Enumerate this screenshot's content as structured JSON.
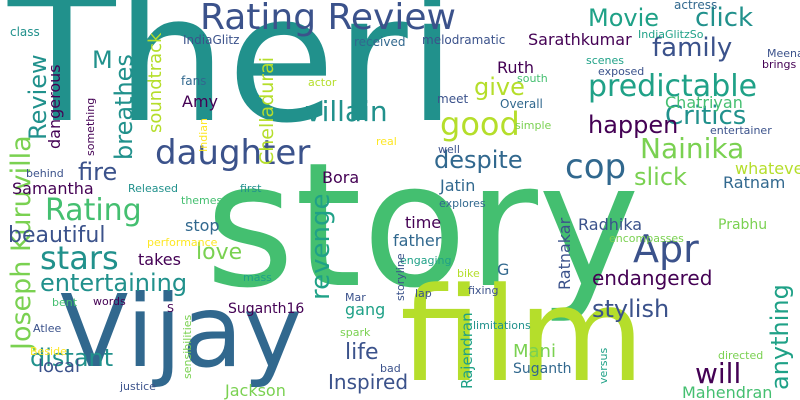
{
  "palette": {
    "background": "#ffffff",
    "dark_purple": "#440154",
    "navy": "#3b528b",
    "blue": "#31688e",
    "teal": "#21918c",
    "green_teal": "#1fa187",
    "green": "#44bf70",
    "light_green": "#7ad151",
    "lime": "#b5de2b",
    "yellow": "#fde725"
  },
  "words": [
    {
      "text": "Theri",
      "color": "teal"
    },
    {
      "text": "story",
      "color": "green"
    },
    {
      "text": "film",
      "color": "lime"
    },
    {
      "text": "Vijay",
      "color": "blue"
    },
    {
      "text": "Rating Review",
      "color": "navy"
    },
    {
      "text": "daughter",
      "color": "navy"
    },
    {
      "text": "Apr",
      "color": "navy"
    },
    {
      "text": "cop",
      "color": "blue"
    },
    {
      "text": "predictable",
      "color": "green_teal"
    },
    {
      "text": "Nainika",
      "color": "light_green"
    },
    {
      "text": "Rating",
      "color": "green"
    },
    {
      "text": "stars",
      "color": "teal"
    },
    {
      "text": "revenge",
      "color": "green_teal"
    },
    {
      "text": "Joseph Kuruvilla",
      "color": "light_green"
    },
    {
      "text": "good",
      "color": "lime"
    },
    {
      "text": "villain",
      "color": "teal"
    },
    {
      "text": "family",
      "color": "navy"
    },
    {
      "text": "Critics",
      "color": "teal"
    },
    {
      "text": "click",
      "color": "teal"
    },
    {
      "text": "Movie",
      "color": "green_teal"
    },
    {
      "text": "happen",
      "color": "dark_purple"
    },
    {
      "text": "slick",
      "color": "light_green"
    },
    {
      "text": "despite",
      "color": "blue"
    },
    {
      "text": "Review",
      "color": "teal"
    },
    {
      "text": "breathes",
      "color": "teal"
    },
    {
      "text": "M",
      "color": "teal"
    },
    {
      "text": "give",
      "color": "lime"
    },
    {
      "text": "fire",
      "color": "navy"
    },
    {
      "text": "love",
      "color": "light_green"
    },
    {
      "text": "entertaining",
      "color": "teal"
    },
    {
      "text": "beautiful",
      "color": "navy"
    },
    {
      "text": "stylish",
      "color": "navy"
    },
    {
      "text": "will",
      "color": "dark_purple"
    },
    {
      "text": "anything",
      "color": "green_teal"
    },
    {
      "text": "endangered",
      "color": "dark_purple"
    },
    {
      "text": "distant",
      "color": "teal"
    },
    {
      "text": "life",
      "color": "navy"
    },
    {
      "text": "Inspired",
      "color": "navy"
    },
    {
      "text": "local",
      "color": "navy"
    },
    {
      "text": "Mani",
      "color": "light_green"
    },
    {
      "text": "Ratnam",
      "color": "blue"
    },
    {
      "text": "whatever",
      "color": "lime"
    },
    {
      "text": "Chelladurai",
      "color": "lime"
    },
    {
      "text": "Amy",
      "color": "dark_purple"
    },
    {
      "text": "Jatin",
      "color": "blue"
    },
    {
      "text": "Bora",
      "color": "dark_purple"
    },
    {
      "text": "Ratnakar",
      "color": "navy"
    },
    {
      "text": "Radhika",
      "color": "navy"
    },
    {
      "text": "Chatriyan",
      "color": "green"
    },
    {
      "text": "Sarathkumar",
      "color": "dark_purple"
    },
    {
      "text": "Ruth",
      "color": "dark_purple"
    },
    {
      "text": "Samantha",
      "color": "dark_purple"
    },
    {
      "text": "soundtrack",
      "color": "lime"
    },
    {
      "text": "dangerous",
      "color": "dark_purple"
    },
    {
      "text": "Jackson",
      "color": "light_green"
    },
    {
      "text": "Mahendran",
      "color": "green"
    },
    {
      "text": "Rajendran",
      "color": "green_teal"
    },
    {
      "text": "gang",
      "color": "green_teal"
    },
    {
      "text": "takes",
      "color": "dark_purple"
    },
    {
      "text": "time",
      "color": "dark_purple"
    },
    {
      "text": "father",
      "color": "blue"
    },
    {
      "text": "stop",
      "color": "blue"
    },
    {
      "text": "G",
      "color": "blue"
    },
    {
      "text": "Suganth16",
      "color": "dark_purple"
    },
    {
      "text": "Suganth",
      "color": "blue"
    },
    {
      "text": "Prabhu",
      "color": "light_green"
    },
    {
      "text": "actress",
      "color": "blue"
    },
    {
      "text": "IndiaGlitzSo",
      "color": "green_teal"
    },
    {
      "text": "Meena",
      "color": "navy"
    },
    {
      "text": "brings",
      "color": "dark_purple"
    },
    {
      "text": "exposed",
      "color": "navy"
    },
    {
      "text": "scenes",
      "color": "green_teal"
    },
    {
      "text": "entertainer",
      "color": "navy"
    },
    {
      "text": "IndiaGlitz",
      "color": "navy"
    },
    {
      "text": "class",
      "color": "teal"
    },
    {
      "text": "received",
      "color": "blue"
    },
    {
      "text": "melodramatic",
      "color": "navy"
    },
    {
      "text": "south",
      "color": "green"
    },
    {
      "text": "Overall",
      "color": "blue"
    },
    {
      "text": "meet",
      "color": "navy"
    },
    {
      "text": "simple",
      "color": "light_green"
    },
    {
      "text": "well",
      "color": "navy"
    },
    {
      "text": "real",
      "color": "yellow"
    },
    {
      "text": "actor",
      "color": "lime"
    },
    {
      "text": "fans",
      "color": "blue"
    },
    {
      "text": "Indian",
      "color": "yellow"
    },
    {
      "text": "something",
      "color": "dark_purple"
    },
    {
      "text": "behind",
      "color": "navy"
    },
    {
      "text": "Released",
      "color": "teal"
    },
    {
      "text": "first",
      "color": "teal"
    },
    {
      "text": "explores",
      "color": "blue"
    },
    {
      "text": "themes",
      "color": "green"
    },
    {
      "text": "performance",
      "color": "yellow"
    },
    {
      "text": "encompasses",
      "color": "light_green"
    },
    {
      "text": "fixing",
      "color": "navy"
    },
    {
      "text": "bike",
      "color": "lime"
    },
    {
      "text": "engaging",
      "color": "green_teal"
    },
    {
      "text": "storyline",
      "color": "navy"
    },
    {
      "text": "lap",
      "color": "navy"
    },
    {
      "text": "mass",
      "color": "green_teal"
    },
    {
      "text": "bent",
      "color": "green"
    },
    {
      "text": "words",
      "color": "dark_purple"
    },
    {
      "text": "S",
      "color": "dark_purple"
    },
    {
      "text": "Mar",
      "color": "navy"
    },
    {
      "text": "Atlee",
      "color": "navy"
    },
    {
      "text": "spark",
      "color": "light_green"
    },
    {
      "text": "limitations",
      "color": "teal"
    },
    {
      "text": "Beside",
      "color": "yellow"
    },
    {
      "text": "sensibilities",
      "color": "light_green"
    },
    {
      "text": "bad",
      "color": "navy"
    },
    {
      "text": "justice",
      "color": "navy"
    },
    {
      "text": "versus",
      "color": "green_teal"
    },
    {
      "text": "directed",
      "color": "light_green"
    }
  ]
}
